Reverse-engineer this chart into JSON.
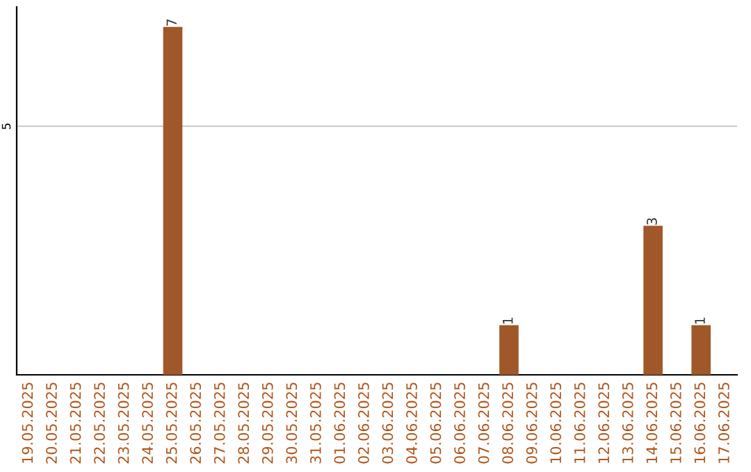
{
  "chart_data": {
    "type": "bar",
    "categories": [
      "19.05.2025",
      "20.05.2025",
      "21.05.2025",
      "22.05.2025",
      "23.05.2025",
      "24.05.2025",
      "25.05.2025",
      "26.05.2025",
      "27.05.2025",
      "28.05.2025",
      "29.05.2025",
      "30.05.2025",
      "31.05.2025",
      "01.06.2025",
      "02.06.2025",
      "03.06.2025",
      "04.06.2025",
      "05.06.2025",
      "06.06.2025",
      "07.06.2025",
      "08.06.2025",
      "09.06.2025",
      "10.06.2025",
      "11.06.2025",
      "12.06.2025",
      "13.06.2025",
      "14.06.2025",
      "15.06.2025",
      "16.06.2025",
      "17.06.2025"
    ],
    "values": [
      0,
      0,
      0,
      0,
      0,
      0,
      7,
      0,
      0,
      0,
      0,
      0,
      0,
      0,
      0,
      0,
      0,
      0,
      0,
      0,
      1,
      0,
      0,
      0,
      0,
      0,
      3,
      0,
      1,
      0
    ],
    "value_labels": [
      null,
      null,
      null,
      null,
      null,
      null,
      "7",
      null,
      null,
      null,
      null,
      null,
      null,
      null,
      null,
      null,
      null,
      null,
      null,
      null,
      "1",
      null,
      null,
      null,
      null,
      null,
      "3",
      null,
      "1",
      null
    ],
    "color": "#a0572a",
    "ylim": [
      0,
      7.4
    ],
    "yticks": [
      5
    ],
    "grid": "y"
  }
}
